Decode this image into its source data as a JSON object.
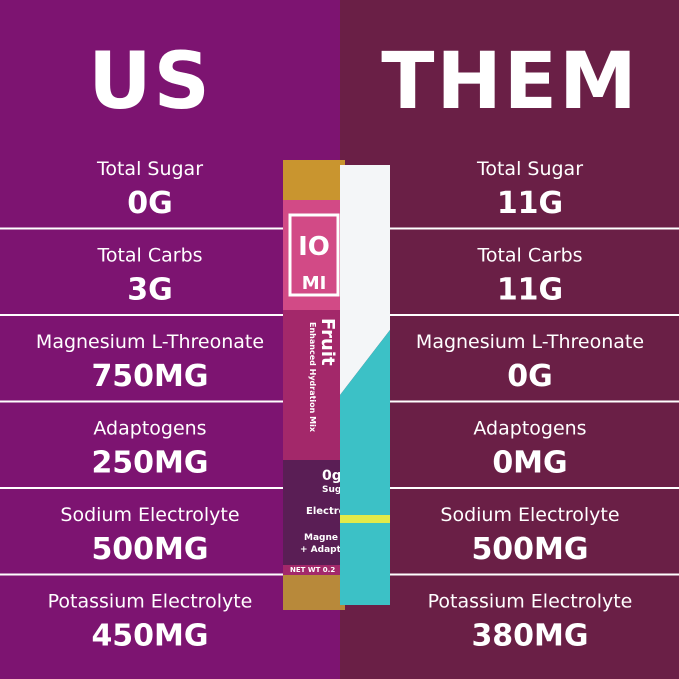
{
  "header": {
    "left": "US",
    "right": "THEM"
  },
  "rows": [
    {
      "label": "Total Sugar",
      "us": "0G",
      "them": "11G"
    },
    {
      "label": "Total Carbs",
      "us": "3G",
      "them": "11G"
    },
    {
      "label": "Magnesium L-Threonate",
      "us": "750MG",
      "them": "0G"
    },
    {
      "label": "Adaptogens",
      "us": "250MG",
      "them": "0MG"
    },
    {
      "label": "Sodium Electrolyte",
      "us": "500MG",
      "them": "500MG"
    },
    {
      "label": "Potassium Electrolyte",
      "us": "450MG",
      "them": "380MG"
    }
  ],
  "packet": {
    "brand_top": "IO",
    "brand_bottom": "MI",
    "flavor": "Fruit",
    "subtitle": "Enhanced Hydration Mix",
    "sugar_value": "0g",
    "sugar_label": "Sug",
    "electro": "Electro",
    "magne": "Magne",
    "adapto": "+ Adapto",
    "net_wt": "NET WT 0.2"
  }
}
